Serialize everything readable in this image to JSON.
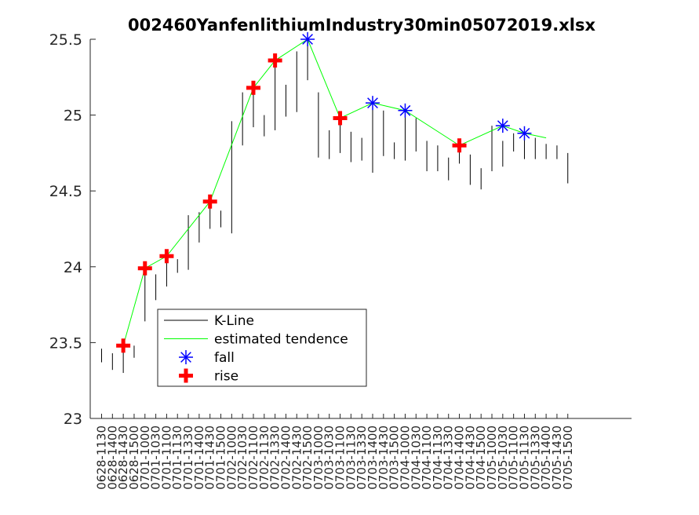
{
  "chart_data": {
    "type": "line",
    "title": "002460YanfenlithiumIndustry30min05072019.xlsx",
    "xlabel": "",
    "ylabel": "",
    "ylim": [
      23,
      25.5
    ],
    "yticks": [
      "23",
      "23.5",
      "24",
      "24.5",
      "25",
      "25.5"
    ],
    "grid": false,
    "legend_position": "center-left",
    "colors": {
      "kline": "#000000",
      "tendence": "#00ff00",
      "fall": "#0000ff",
      "rise": "#ff0000"
    },
    "legend": [
      {
        "label": "K-Line",
        "marker": "line",
        "color": "#000000"
      },
      {
        "label": "estimated tendence",
        "marker": "line",
        "color": "#00ff00"
      },
      {
        "label": "fall",
        "marker": "asterisk",
        "color": "#0000ff"
      },
      {
        "label": "rise",
        "marker": "plus",
        "color": "#ff0000"
      }
    ],
    "categories": [
      "0628-1130",
      "0628-1400",
      "0628-1430",
      "0628-1500",
      "0701-1000",
      "0701-1030",
      "0701-1100",
      "0701-1130",
      "0701-1330",
      "0701-1400",
      "0701-1430",
      "0701-1500",
      "0702-1000",
      "0702-1030",
      "0702-1100",
      "0702-1130",
      "0702-1330",
      "0702-1400",
      "0702-1430",
      "0702-1500",
      "0703-1000",
      "0703-1030",
      "0703-1100",
      "0703-1130",
      "0703-1330",
      "0703-1400",
      "0703-1430",
      "0703-1500",
      "0704-1000",
      "0704-1030",
      "0704-1100",
      "0704-1130",
      "0704-1330",
      "0704-1400",
      "0704-1430",
      "0704-1500",
      "0705-1000",
      "0705-1030",
      "0705-1100",
      "0705-1130",
      "0705-1330",
      "0705-1400",
      "0705-1430",
      "0705-1500"
    ],
    "kline": [
      {
        "low": 23.37,
        "high": 23.46
      },
      {
        "low": 23.32,
        "high": 23.43
      },
      {
        "low": 23.3,
        "high": 23.49
      },
      {
        "low": 23.4,
        "high": 23.48
      },
      {
        "low": 23.64,
        "high": 24.0
      },
      {
        "low": 23.78,
        "high": 23.95
      },
      {
        "low": 23.87,
        "high": 24.06
      },
      {
        "low": 23.96,
        "high": 24.05
      },
      {
        "low": 23.98,
        "high": 24.34
      },
      {
        "low": 24.16,
        "high": 24.36
      },
      {
        "low": 24.25,
        "high": 24.44
      },
      {
        "low": 24.26,
        "high": 24.37
      },
      {
        "low": 24.22,
        "high": 24.96
      },
      {
        "low": 24.8,
        "high": 25.15
      },
      {
        "low": 24.92,
        "high": 25.18
      },
      {
        "low": 24.86,
        "high": 25.0
      },
      {
        "low": 24.9,
        "high": 25.35
      },
      {
        "low": 24.99,
        "high": 25.2
      },
      {
        "low": 25.02,
        "high": 25.42
      },
      {
        "low": 25.23,
        "high": 25.5
      },
      {
        "low": 24.72,
        "high": 25.15
      },
      {
        "low": 24.71,
        "high": 24.9
      },
      {
        "low": 24.75,
        "high": 24.94
      },
      {
        "low": 24.69,
        "high": 24.89
      },
      {
        "low": 24.7,
        "high": 24.85
      },
      {
        "low": 24.62,
        "high": 25.08
      },
      {
        "low": 24.73,
        "high": 25.03
      },
      {
        "low": 24.71,
        "high": 24.82
      },
      {
        "low": 24.7,
        "high": 25.03
      },
      {
        "low": 24.76,
        "high": 24.98
      },
      {
        "low": 24.63,
        "high": 24.83
      },
      {
        "low": 24.63,
        "high": 24.8
      },
      {
        "low": 24.57,
        "high": 24.72
      },
      {
        "low": 24.68,
        "high": 24.8
      },
      {
        "low": 24.54,
        "high": 24.74
      },
      {
        "low": 24.51,
        "high": 24.65
      },
      {
        "low": 24.63,
        "high": 24.93
      },
      {
        "low": 24.66,
        "high": 24.83
      },
      {
        "low": 24.76,
        "high": 24.88
      },
      {
        "low": 24.71,
        "high": 24.84
      },
      {
        "low": 24.71,
        "high": 24.85
      },
      {
        "low": 24.71,
        "high": 24.81
      },
      {
        "low": 24.71,
        "high": 24.8
      },
      {
        "low": 24.55,
        "high": 24.75
      }
    ],
    "tendence": [
      {
        "i": 2,
        "y": 23.48
      },
      {
        "i": 4,
        "y": 23.99
      },
      {
        "i": 6,
        "y": 24.07
      },
      {
        "i": 10,
        "y": 24.43
      },
      {
        "i": 14,
        "y": 25.18
      },
      {
        "i": 16,
        "y": 25.36
      },
      {
        "i": 19,
        "y": 25.5
      },
      {
        "i": 22,
        "y": 24.98
      },
      {
        "i": 25,
        "y": 25.08
      },
      {
        "i": 28,
        "y": 25.03
      },
      {
        "i": 33,
        "y": 24.8
      },
      {
        "i": 37,
        "y": 24.93
      },
      {
        "i": 39,
        "y": 24.88
      },
      {
        "i": 41,
        "y": 24.85
      }
    ],
    "fall": [
      {
        "i": 19,
        "y": 25.5
      },
      {
        "i": 25,
        "y": 25.08
      },
      {
        "i": 28,
        "y": 25.03
      },
      {
        "i": 37,
        "y": 24.93
      },
      {
        "i": 39,
        "y": 24.88
      }
    ],
    "rise": [
      {
        "i": 2,
        "y": 23.48
      },
      {
        "i": 4,
        "y": 23.99
      },
      {
        "i": 6,
        "y": 24.07
      },
      {
        "i": 10,
        "y": 24.43
      },
      {
        "i": 14,
        "y": 25.18
      },
      {
        "i": 16,
        "y": 25.36
      },
      {
        "i": 22,
        "y": 24.98
      },
      {
        "i": 33,
        "y": 24.8
      }
    ]
  }
}
